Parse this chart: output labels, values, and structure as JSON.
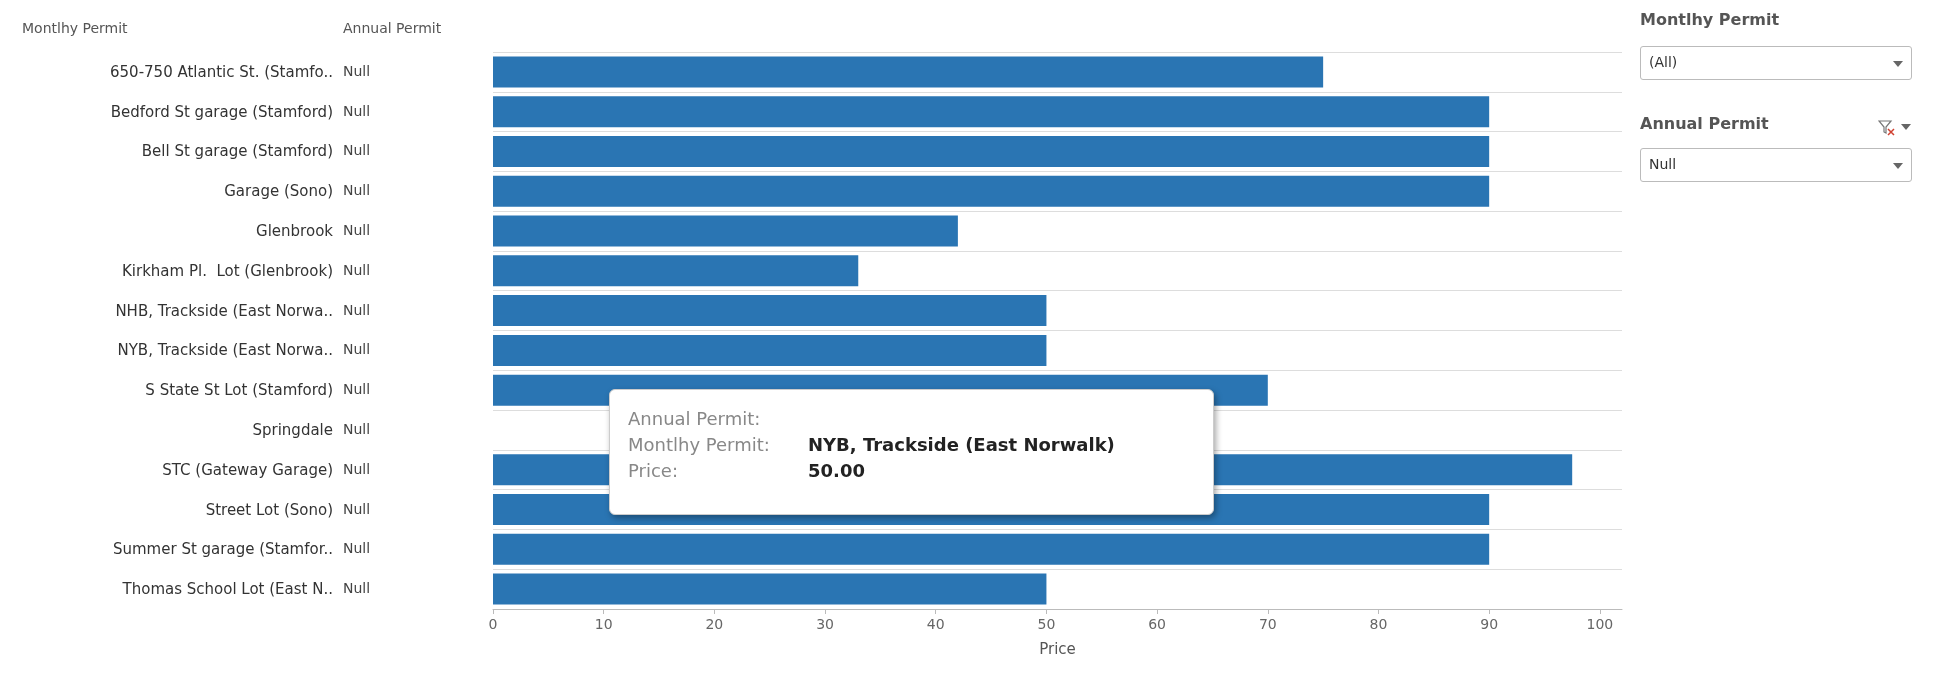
{
  "chart_data": {
    "type": "bar",
    "orientation": "horizontal",
    "categories": [
      "650-750 Atlantic St. (Stamfo..",
      "Bedford St garage (Stamford)",
      "Bell St garage (Stamford)",
      "Garage (Sono)",
      "Glenbrook",
      "Kirkham Pl.  Lot (Glenbrook)",
      "NHB, Trackside (East Norwa..",
      "NYB, Trackside (East Norwa..",
      "S State St Lot (Stamford)",
      "Springdale",
      "STC (Gateway Garage)",
      "Street Lot (Sono)",
      "Summer St garage (Stamfor..",
      "Thomas School Lot (East N.."
    ],
    "y2_categories": [
      "Null",
      "Null",
      "Null",
      "Null",
      "Null",
      "Null",
      "Null",
      "Null",
      "Null",
      "Null",
      "Null",
      "Null",
      "Null",
      "Null"
    ],
    "values": [
      75,
      90,
      90,
      90,
      42,
      33,
      50,
      50,
      70,
      null,
      97.5,
      90,
      90,
      50
    ],
    "color": "#2a75b3",
    "xlim": [
      0,
      102
    ],
    "xticks": [
      0,
      10,
      20,
      30,
      40,
      50,
      60,
      70,
      80,
      90,
      100
    ],
    "xlabel": "Price",
    "grid": "y",
    "annotations": [
      "Montlhy Permit",
      "Annual Permit",
      "Montlhy Permit",
      "(All)",
      "Annual Permit",
      "Null",
      "Annual Permit:",
      "Montlhy Permit:",
      "NYB, Trackside (East Norwalk)",
      "Price:",
      "50.00"
    ]
  }
}
